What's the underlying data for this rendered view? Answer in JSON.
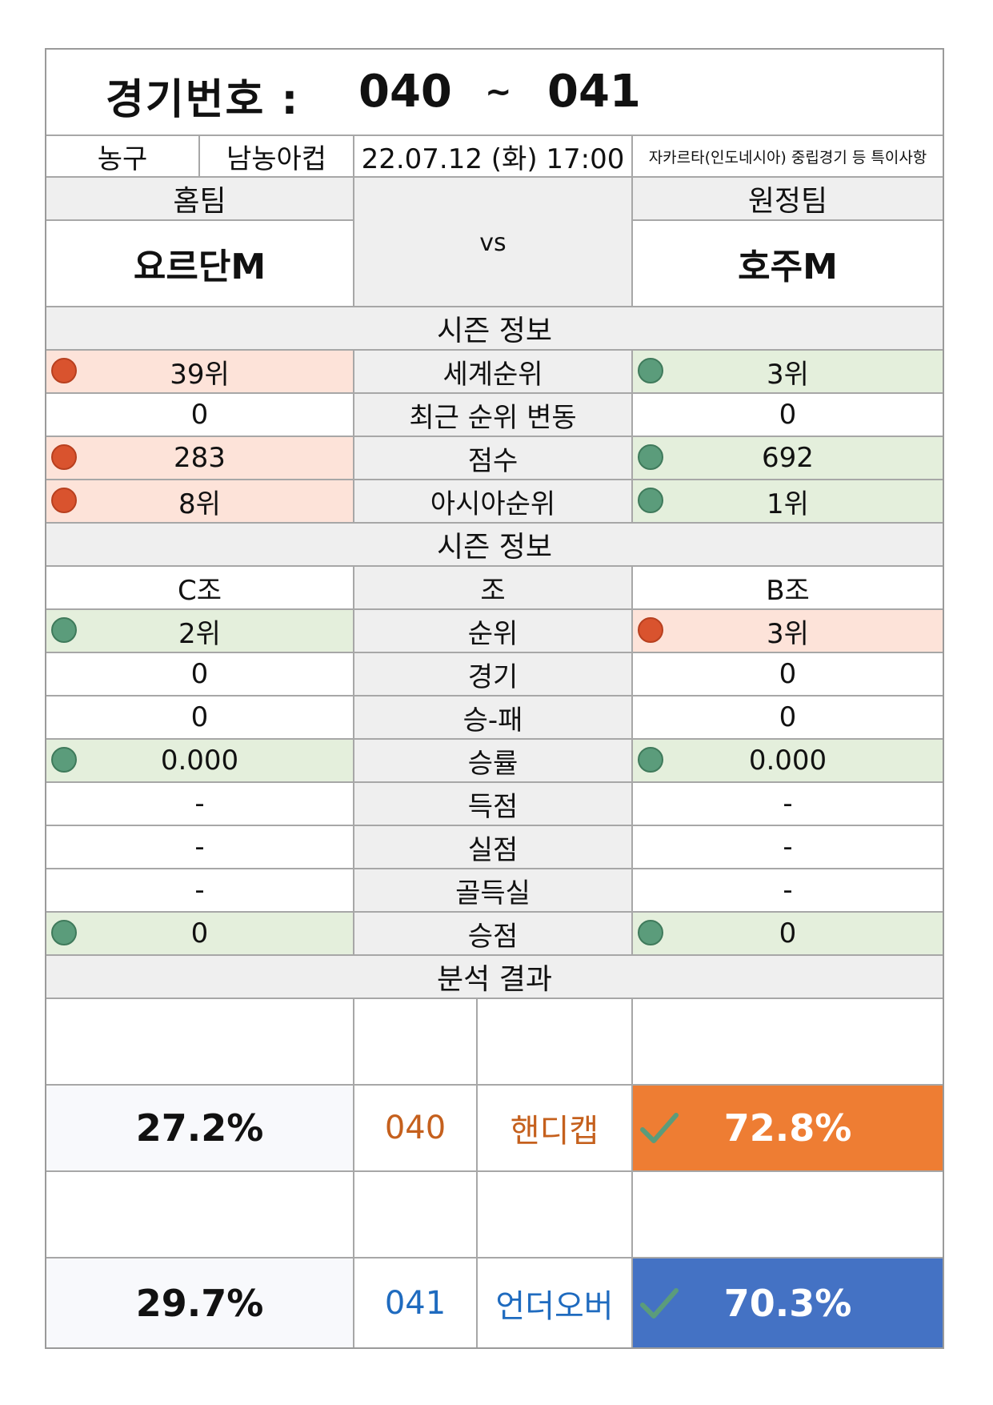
{
  "header": {
    "title_label": "경기번호 :",
    "num_from": "040",
    "tilde": "~",
    "num_to": "041"
  },
  "info": {
    "sport": "농구",
    "league": "남농아컵",
    "datetime": "22.07.12 (화) 17:00",
    "note": "자카르타(인도네시아) 중립경기 등 특이사항"
  },
  "teams": {
    "home_label": "홈팀",
    "away_label": "원정팀",
    "home_name": "요르단M",
    "away_name": "호주M",
    "vs": "vs"
  },
  "section1": {
    "title": "시즌 정보",
    "rows": [
      {
        "label": "세계순위",
        "home": "39위",
        "away": "3위",
        "home_mark": "red",
        "away_mark": "green"
      },
      {
        "label": "최근 순위 변동",
        "home": "0",
        "away": "0",
        "home_mark": "",
        "away_mark": ""
      },
      {
        "label": "점수",
        "home": "283",
        "away": "692",
        "home_mark": "red",
        "away_mark": "green"
      },
      {
        "label": "아시아순위",
        "home": "8위",
        "away": "1위",
        "home_mark": "red",
        "away_mark": "green"
      }
    ]
  },
  "section2": {
    "title": "시즌 정보",
    "rows": [
      {
        "label": "조",
        "home": "C조",
        "away": "B조",
        "home_mark": "",
        "away_mark": ""
      },
      {
        "label": "순위",
        "home": "2위",
        "away": "3위",
        "home_mark": "green",
        "away_mark": "red"
      },
      {
        "label": "경기",
        "home": "0",
        "away": "0",
        "home_mark": "",
        "away_mark": ""
      },
      {
        "label": "승-패",
        "home": "0",
        "away": "0",
        "home_mark": "",
        "away_mark": ""
      },
      {
        "label": "승률",
        "home": "0.000",
        "away": "0.000",
        "home_mark": "green",
        "away_mark": "green"
      },
      {
        "label": "득점",
        "home": "-",
        "away": "-",
        "home_mark": "",
        "away_mark": ""
      },
      {
        "label": "실점",
        "home": "-",
        "away": "-",
        "home_mark": "",
        "away_mark": ""
      },
      {
        "label": "골득실",
        "home": "-",
        "away": "-",
        "home_mark": "",
        "away_mark": ""
      },
      {
        "label": "승점",
        "home": "0",
        "away": "0",
        "home_mark": "green",
        "away_mark": "green"
      }
    ]
  },
  "analysis": {
    "title": "분석 결과",
    "rows": [
      {
        "home_pct": "27.2%",
        "game_no": "040",
        "type": "핸디캡",
        "away_pct": "72.8%",
        "check_icon": "check-icon"
      },
      {
        "home_pct": "29.7%",
        "game_no": "041",
        "type": "언더오버",
        "away_pct": "70.3%",
        "check_icon": "check-icon"
      }
    ]
  },
  "colors": {
    "red_mark": "#d9532e",
    "green_mark": "#5b9c7b",
    "red_row": "#fde3d9",
    "green_row": "#e4efdc",
    "orange": "#ee7d33",
    "blue": "#4472c4"
  }
}
